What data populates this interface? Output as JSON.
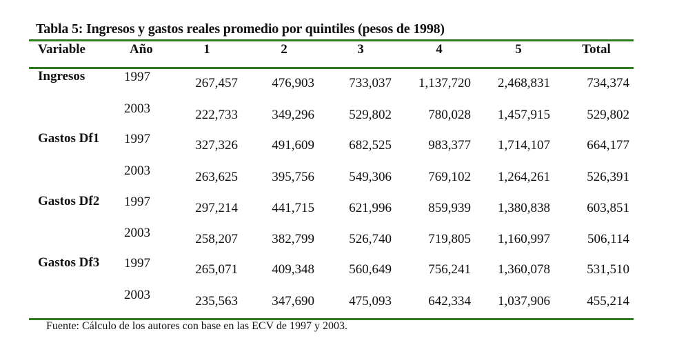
{
  "title": "Tabla 5: Ingresos y gastos reales promedio por quintiles (pesos de 1998)",
  "accent_color": "#2e7d1e",
  "columns": [
    "Variable",
    "Año",
    "1",
    "2",
    "3",
    "4",
    "5",
    "Total"
  ],
  "groups": [
    {
      "variable": "Ingresos",
      "rows": [
        {
          "year": "1997",
          "values": [
            "267,457",
            "476,903",
            "733,037",
            "1,137,720",
            "2,468,831",
            "734,374"
          ]
        },
        {
          "year": "2003",
          "values": [
            "222,733",
            "349,296",
            "529,802",
            "780,028",
            "1,457,915",
            "529,802"
          ]
        }
      ]
    },
    {
      "variable": "Gastos Df1",
      "rows": [
        {
          "year": "1997",
          "values": [
            "327,326",
            "491,609",
            "682,525",
            "983,377",
            "1,714,107",
            "664,177"
          ]
        },
        {
          "year": "2003",
          "values": [
            "263,625",
            "395,756",
            "549,306",
            "769,102",
            "1,264,261",
            "526,391"
          ]
        }
      ]
    },
    {
      "variable": "Gastos Df2",
      "rows": [
        {
          "year": "1997",
          "values": [
            "297,214",
            "441,715",
            "621,996",
            "859,939",
            "1,380,838",
            "603,851"
          ]
        },
        {
          "year": "2003",
          "values": [
            "258,207",
            "382,799",
            "526,740",
            "719,805",
            "1,160,997",
            "506,114"
          ]
        }
      ]
    },
    {
      "variable": "Gastos Df3",
      "rows": [
        {
          "year": "1997",
          "values": [
            "265,071",
            "409,348",
            "560,649",
            "756,241",
            "1,360,078",
            "531,510"
          ]
        },
        {
          "year": "2003",
          "values": [
            "235,563",
            "347,690",
            "475,093",
            "642,334",
            "1,037,906",
            "455,214"
          ]
        }
      ]
    }
  ],
  "source": "Fuente: Cálculo de los autores con base en las ECV de 1997 y 2003."
}
